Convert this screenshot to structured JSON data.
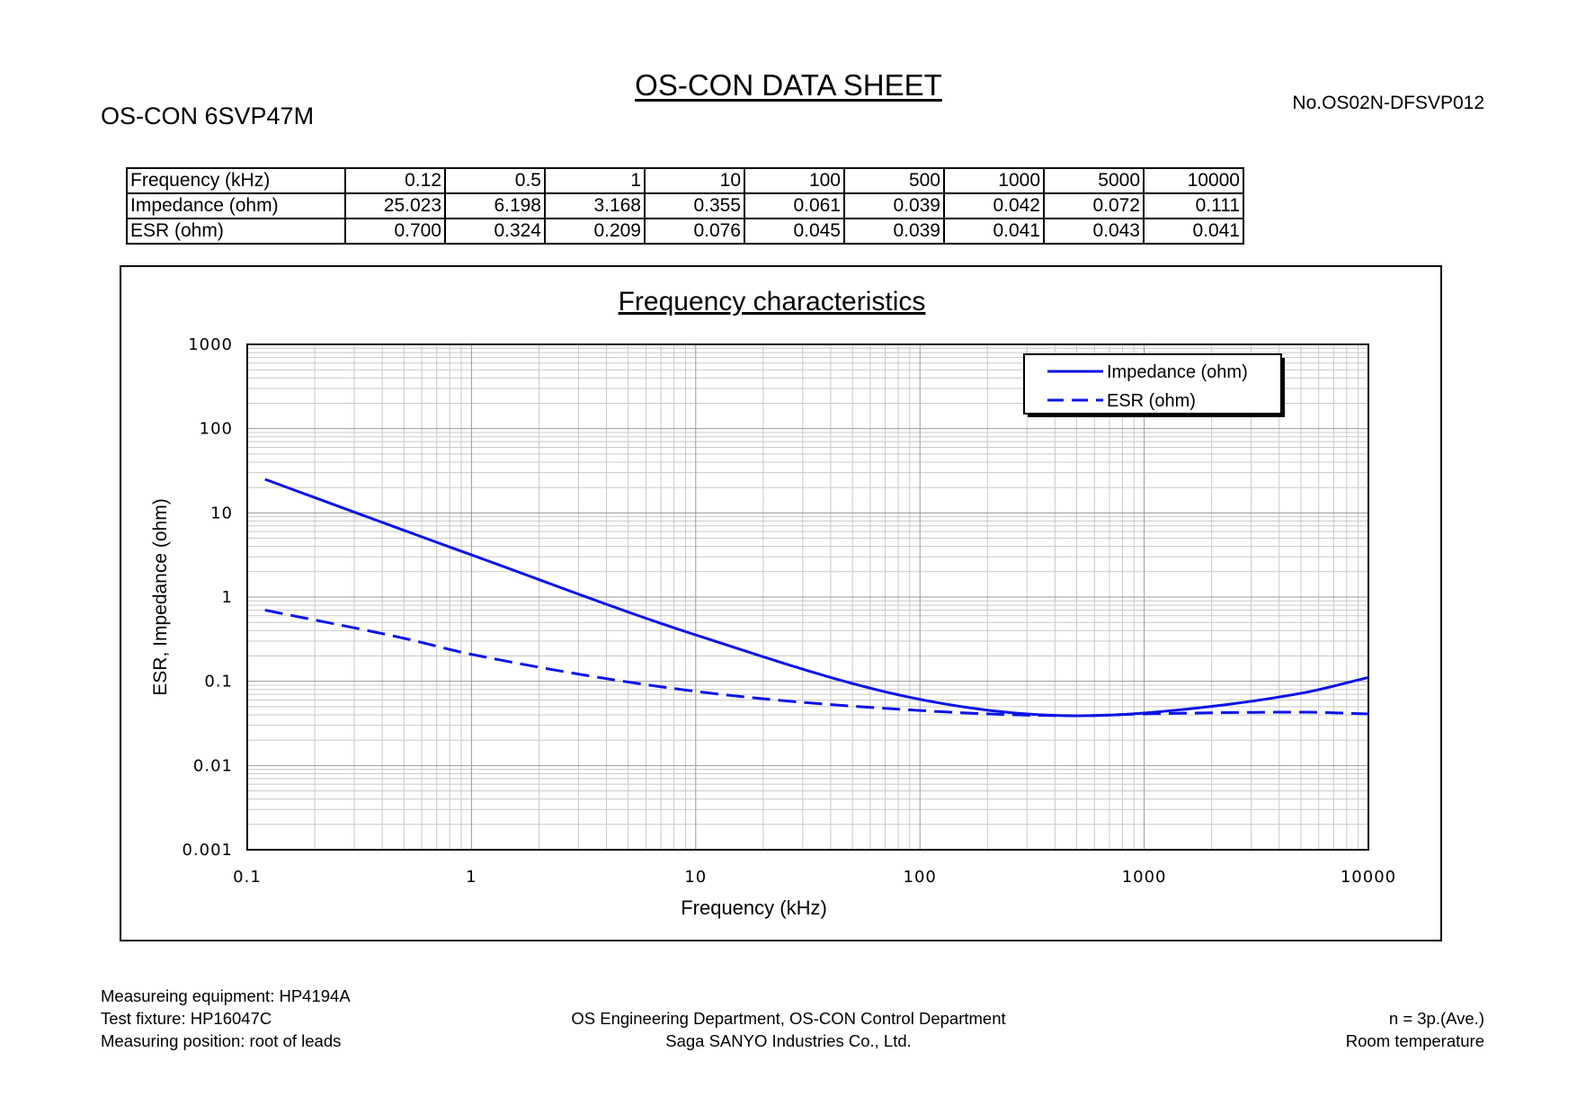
{
  "header": {
    "title": "OS-CON DATA SHEET",
    "part_number": "OS-CON 6SVP47M",
    "document_number": "No.OS02N-DFSVP012"
  },
  "table": {
    "rows": [
      {
        "label": "Frequency (kHz)",
        "cells": [
          "0.12",
          "0.5",
          "1",
          "10",
          "100",
          "500",
          "1000",
          "5000",
          "10000"
        ]
      },
      {
        "label": "Impedance (ohm)",
        "cells": [
          "25.023",
          "6.198",
          "3.168",
          "0.355",
          "0.061",
          "0.039",
          "0.042",
          "0.072",
          "0.111"
        ]
      },
      {
        "label": "ESR (ohm)",
        "cells": [
          "0.700",
          "0.324",
          "0.209",
          "0.076",
          "0.045",
          "0.039",
          "0.041",
          "0.043",
          "0.041"
        ]
      }
    ]
  },
  "chart_data": {
    "type": "line",
    "title": "Frequency characteristics",
    "xlabel": "Frequency (kHz)",
    "ylabel": "ESR, Impedance (ohm)",
    "x_scale": "log",
    "y_scale": "log",
    "xlim": [
      0.1,
      10000
    ],
    "ylim": [
      0.001,
      1000
    ],
    "x_ticks": [
      "0.1",
      "1",
      "10",
      "100",
      "1000",
      "10000"
    ],
    "y_ticks": [
      "1000",
      "100",
      "10",
      "1",
      "0.1",
      "0.01",
      "0.001"
    ],
    "grid": true,
    "legend_position": "top-right",
    "series": [
      {
        "name": "Impedance (ohm)",
        "style": "solid",
        "color": "#0a14e6",
        "x": [
          0.12,
          0.5,
          1,
          10,
          100,
          500,
          1000,
          5000,
          10000
        ],
        "y": [
          25.023,
          6.198,
          3.168,
          0.355,
          0.061,
          0.039,
          0.042,
          0.072,
          0.111
        ]
      },
      {
        "name": "ESR (ohm)",
        "style": "dashed",
        "color": "#0a14e6",
        "x": [
          0.12,
          0.5,
          1,
          10,
          100,
          500,
          1000,
          5000,
          10000
        ],
        "y": [
          0.7,
          0.324,
          0.209,
          0.076,
          0.045,
          0.039,
          0.041,
          0.043,
          0.041
        ]
      }
    ]
  },
  "footer": {
    "equipment": "Measureing equipment: HP4194A",
    "fixture": "Test fixture: HP16047C",
    "position": "Measuring position: root of leads",
    "department": "OS Engineering Department, OS-CON Control Department",
    "company": "Saga SANYO Industries Co., Ltd.",
    "samples": "n = 3p.(Ave.)",
    "condition": "Room temperature"
  }
}
